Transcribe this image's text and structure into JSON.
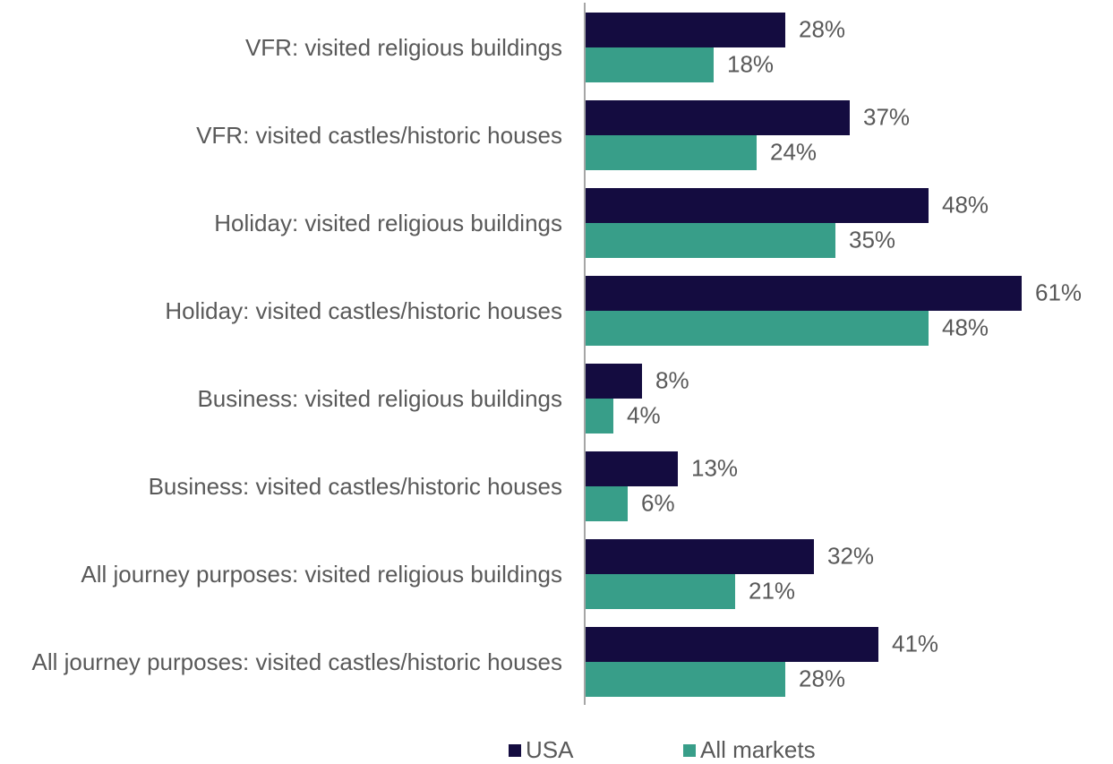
{
  "chart_data": {
    "type": "bar",
    "orientation": "horizontal",
    "categories": [
      "VFR: visited religious buildings",
      "VFR: visited castles/historic houses",
      "Holiday: visited religious buildings",
      "Holiday: visited castles/historic houses",
      "Business: visited religious buildings",
      "Business: visited castles/historic houses",
      "All journey purposes: visited religious buildings",
      "All journey purposes: visited castles/historic houses"
    ],
    "series": [
      {
        "name": "USA",
        "color": "#140c40",
        "values": [
          28,
          37,
          48,
          61,
          8,
          13,
          32,
          41
        ],
        "value_labels": [
          "28%",
          "37%",
          "48%",
          "61%",
          "8%",
          "13%",
          "32%",
          "41%"
        ]
      },
      {
        "name": "All markets",
        "color": "#389e89",
        "values": [
          18,
          24,
          35,
          48,
          4,
          6,
          21,
          28
        ],
        "value_labels": [
          "18%",
          "24%",
          "35%",
          "48%",
          "4%",
          "6%",
          "21%",
          "28%"
        ]
      }
    ],
    "xlim": [
      0,
      70
    ],
    "legend": "bottom"
  }
}
